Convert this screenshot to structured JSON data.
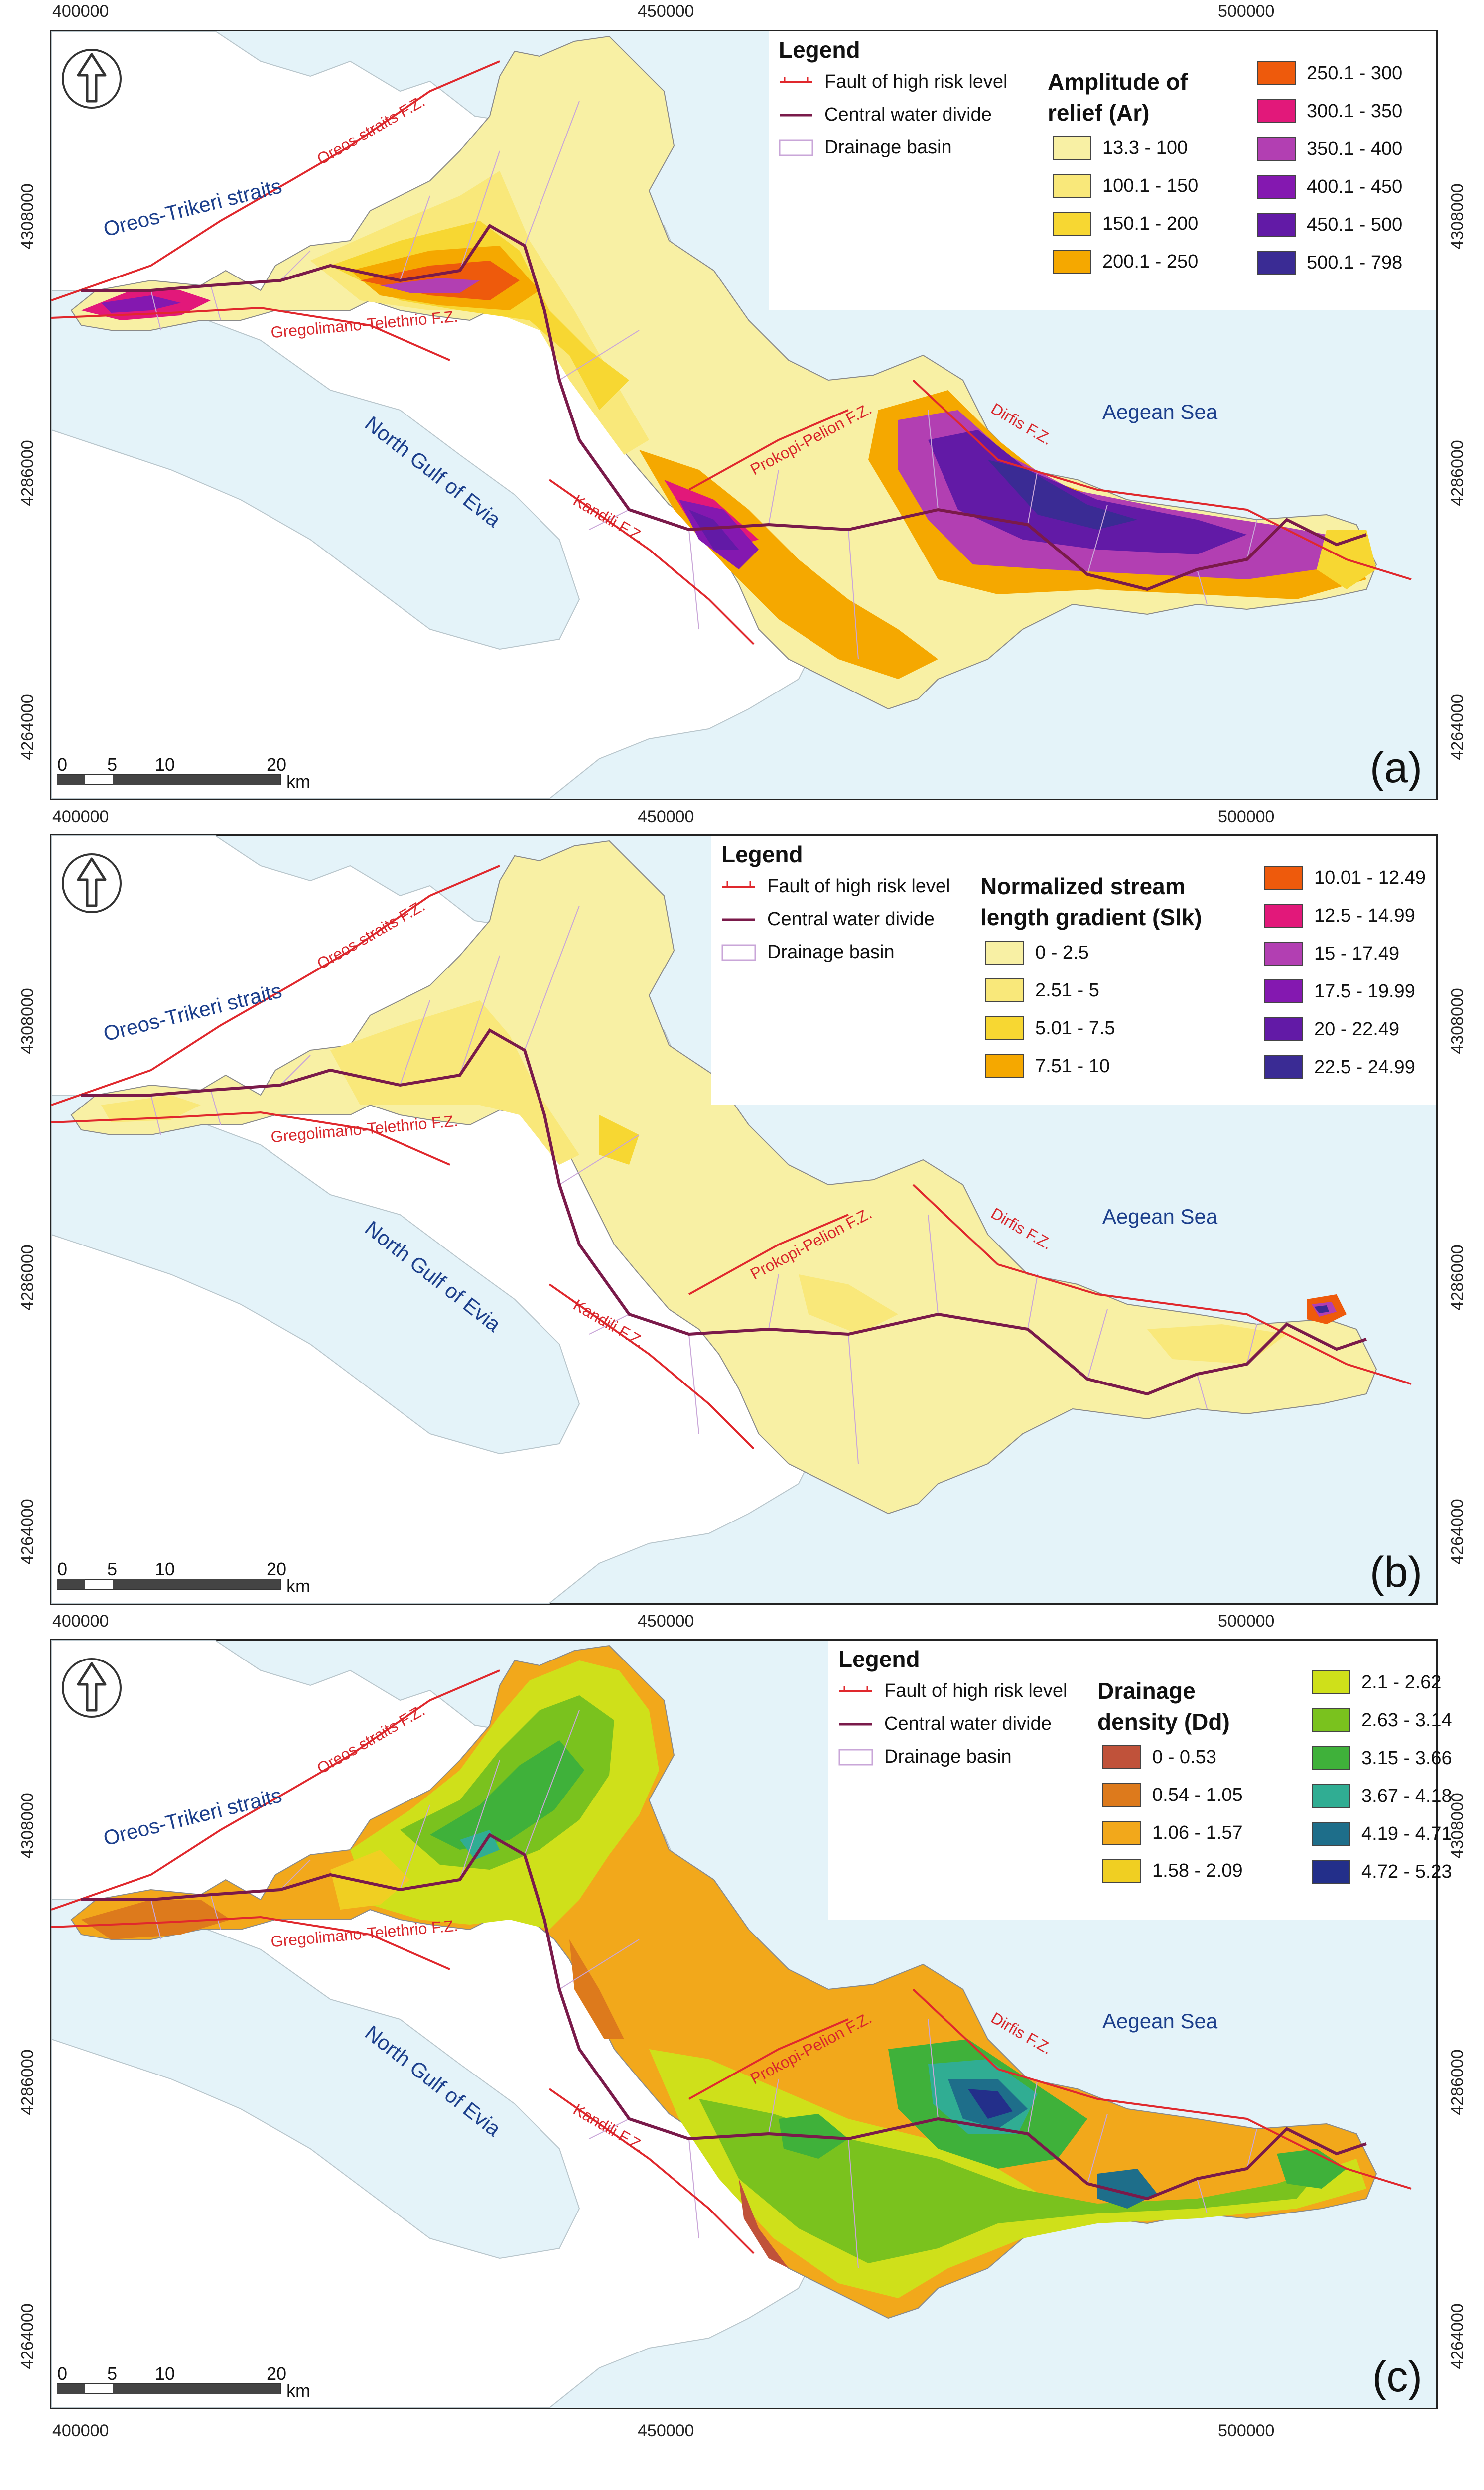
{
  "axes": {
    "x_ticks": [
      "400000",
      "450000",
      "500000"
    ],
    "y_ticks": [
      "4308000",
      "4286000",
      "4264000"
    ]
  },
  "scalebar": {
    "labels": [
      "0",
      "5",
      "10",
      "20"
    ],
    "unit": "km"
  },
  "map_labels": {
    "oreos_trikeri": "Oreos-Trikeri straits",
    "north_gulf": "North Gulf of Evia",
    "aegean": "Aegean Sea",
    "oreos_fz": "Oreos straits F.Z.",
    "gregolimano_fz": "Gregolimano-Telethrio F.Z.",
    "kandili_fz": "Kandili F.Z.",
    "prokopi_fz": "Prokopi-Pelion F.Z.",
    "dirfis_fz": "Dirfis F.Z."
  },
  "legend_common": {
    "title": "Legend",
    "fault": "Fault of high risk level",
    "divide": "Central water divide",
    "basin": "Drainage basin"
  },
  "panels": [
    {
      "label": "(a)",
      "quantity_line1": "Amplitude of",
      "quantity_line2": "relief (Ar)",
      "classes": [
        {
          "label": "13.3 - 100",
          "color": "#f8f0a4"
        },
        {
          "label": "100.1 - 150",
          "color": "#f9e87a"
        },
        {
          "label": "150.1 - 200",
          "color": "#f7d732"
        },
        {
          "label": "200.1 - 250",
          "color": "#f5a800"
        },
        {
          "label": "250.1 - 300",
          "color": "#ee5a0c"
        },
        {
          "label": "300.1 - 350",
          "color": "#e2187a"
        },
        {
          "label": "350.1 - 400",
          "color": "#b23fb2"
        },
        {
          "label": "400.1 - 450",
          "color": "#8418b0"
        },
        {
          "label": "450.1 - 500",
          "color": "#621aa6"
        },
        {
          "label": "500.1 - 798",
          "color": "#3a2b94"
        }
      ]
    },
    {
      "label": "(b)",
      "quantity_line1": "Normalized stream",
      "quantity_line2": "length gradient (Slk)",
      "classes": [
        {
          "label": "0 - 2.5",
          "color": "#f8f0a4"
        },
        {
          "label": "2.51 - 5",
          "color": "#f9e87a"
        },
        {
          "label": "5.01 - 7.5",
          "color": "#f7d732"
        },
        {
          "label": "7.51 - 10",
          "color": "#f5a800"
        },
        {
          "label": "10.01 - 12.49",
          "color": "#ee5a0c"
        },
        {
          "label": "12.5 - 14.99",
          "color": "#e2187a"
        },
        {
          "label": "15 - 17.49",
          "color": "#b23fb2"
        },
        {
          "label": "17.5 - 19.99",
          "color": "#8418b0"
        },
        {
          "label": "20 - 22.49",
          "color": "#621aa6"
        },
        {
          "label": "22.5 - 24.99",
          "color": "#3a2b94"
        }
      ]
    },
    {
      "label": "(c)",
      "quantity_line1": "Drainage",
      "quantity_line2": "density (Dd)",
      "classes": [
        {
          "label": "0 - 0.53",
          "color": "#c0523a"
        },
        {
          "label": "0.54 - 1.05",
          "color": "#dd7a1c"
        },
        {
          "label": "1.06 - 1.57",
          "color": "#f2a81b"
        },
        {
          "label": "1.58 - 2.09",
          "color": "#f0cf22"
        },
        {
          "label": "2.1 - 2.62",
          "color": "#cfe01a"
        },
        {
          "label": "2.63 - 3.14",
          "color": "#7ac21e"
        },
        {
          "label": "3.15 - 3.66",
          "color": "#3fb13a"
        },
        {
          "label": "3.67 - 4.18",
          "color": "#30ad93"
        },
        {
          "label": "4.19 - 4.71",
          "color": "#1e6e8a"
        },
        {
          "label": "4.72 - 5.23",
          "color": "#232f8a"
        }
      ]
    }
  ],
  "colors": {
    "sea": "#e4f3f9",
    "land_grey": "#ffffff",
    "fault": "#e0282d",
    "divide": "#7a1a4a",
    "basin": "#c9a6d8"
  }
}
